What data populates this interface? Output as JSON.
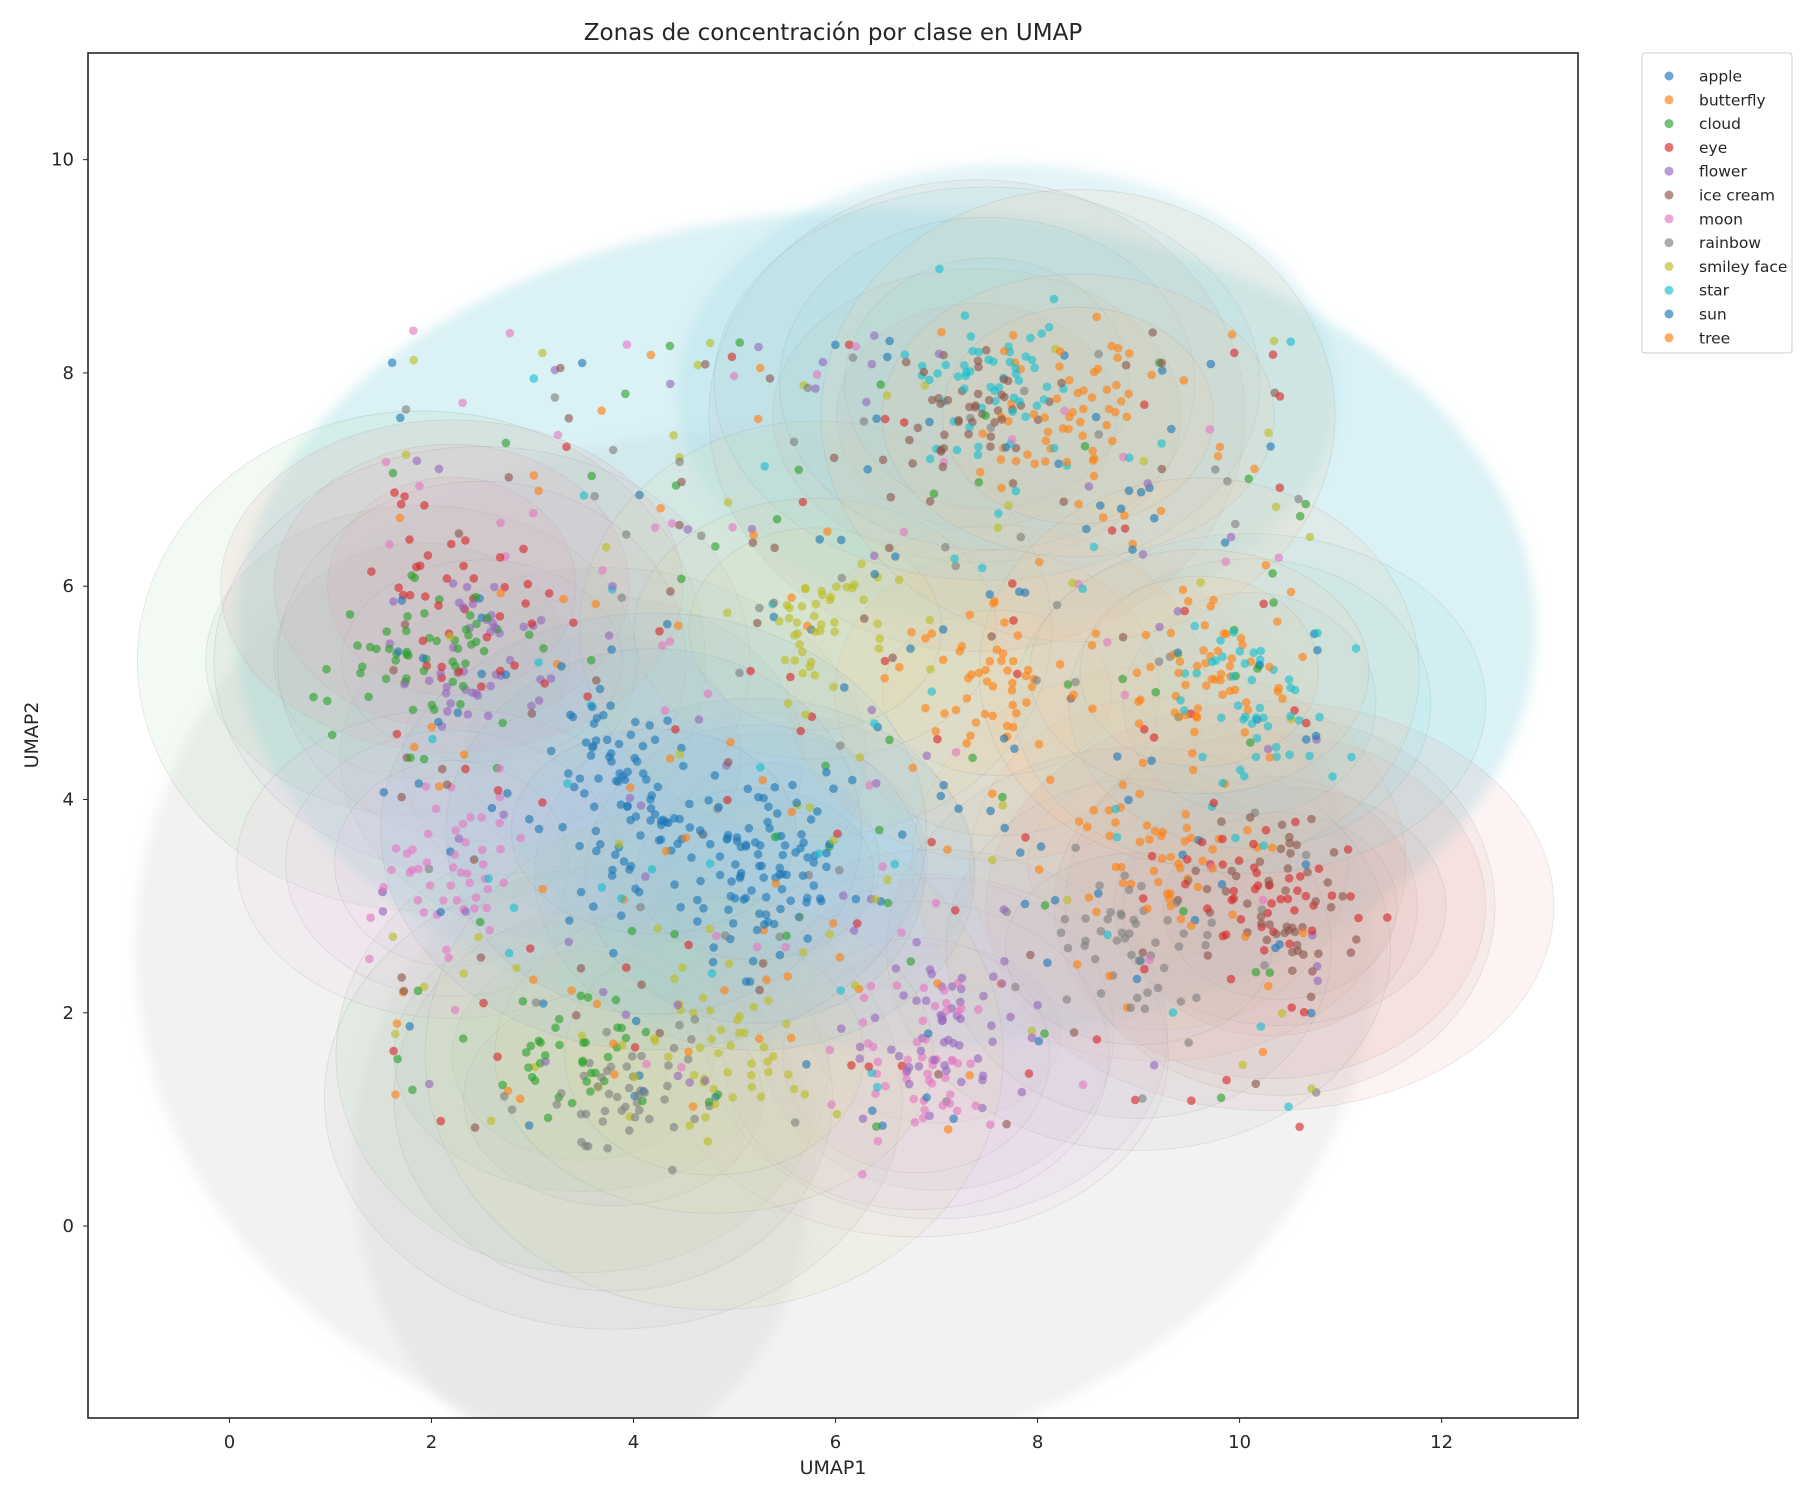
{
  "chart_data": {
    "type": "scatter",
    "title": "Zonas de concentración por clase en UMAP",
    "xlabel": "UMAP1",
    "ylabel": "UMAP2",
    "xlim": [
      -1.4,
      13.35
    ],
    "ylim": [
      -1.8,
      11.0
    ],
    "xticks": [
      0,
      2,
      4,
      6,
      8,
      10,
      12
    ],
    "yticks": [
      0,
      2,
      4,
      6,
      8,
      10
    ],
    "grid": false,
    "legend_position": "outside-top-right",
    "overlay": "kde-density-zones",
    "series": [
      {
        "name": "apple",
        "color": "#1f77b4",
        "centers": [
          [
            5.3,
            3.4
          ],
          [
            3.7,
            4.4
          ]
        ]
      },
      {
        "name": "butterfly",
        "color": "#ff7f0e",
        "centers": [
          [
            9.2,
            3.4
          ],
          [
            7.6,
            5.0
          ]
        ]
      },
      {
        "name": "cloud",
        "color": "#2ca02c",
        "centers": [
          [
            1.9,
            5.3
          ],
          [
            3.5,
            1.6
          ]
        ]
      },
      {
        "name": "eye",
        "color": "#d62728",
        "centers": [
          [
            2.2,
            6.0
          ],
          [
            10.3,
            3.0
          ]
        ]
      },
      {
        "name": "flower",
        "color": "#9467bd",
        "centers": [
          [
            2.5,
            5.3
          ],
          [
            7.0,
            1.8
          ]
        ]
      },
      {
        "name": "ice cream",
        "color": "#8c564b",
        "centers": [
          [
            10.4,
            3.0
          ],
          [
            7.4,
            7.6
          ]
        ]
      },
      {
        "name": "moon",
        "color": "#e377c2",
        "centers": [
          [
            6.8,
            1.6
          ],
          [
            2.2,
            3.4
          ]
        ]
      },
      {
        "name": "rainbow",
        "color": "#7f7f7f",
        "centers": [
          [
            3.8,
            1.2
          ],
          [
            9.0,
            2.6
          ]
        ]
      },
      {
        "name": "smiley face",
        "color": "#bcbd22",
        "centers": [
          [
            5.8,
            5.6
          ],
          [
            4.8,
            1.6
          ]
        ]
      },
      {
        "name": "star",
        "color": "#17becf",
        "centers": [
          [
            7.5,
            7.9
          ],
          [
            10.1,
            4.9
          ]
        ]
      },
      {
        "name": "sun",
        "color": "#1f77b4",
        "centers": [
          [
            5.2,
            3.3
          ],
          [
            4.2,
            3.7
          ]
        ]
      },
      {
        "name": "tree",
        "color": "#ff7f0e",
        "centers": [
          [
            8.4,
            7.6
          ],
          [
            9.6,
            5.2
          ]
        ]
      }
    ]
  }
}
